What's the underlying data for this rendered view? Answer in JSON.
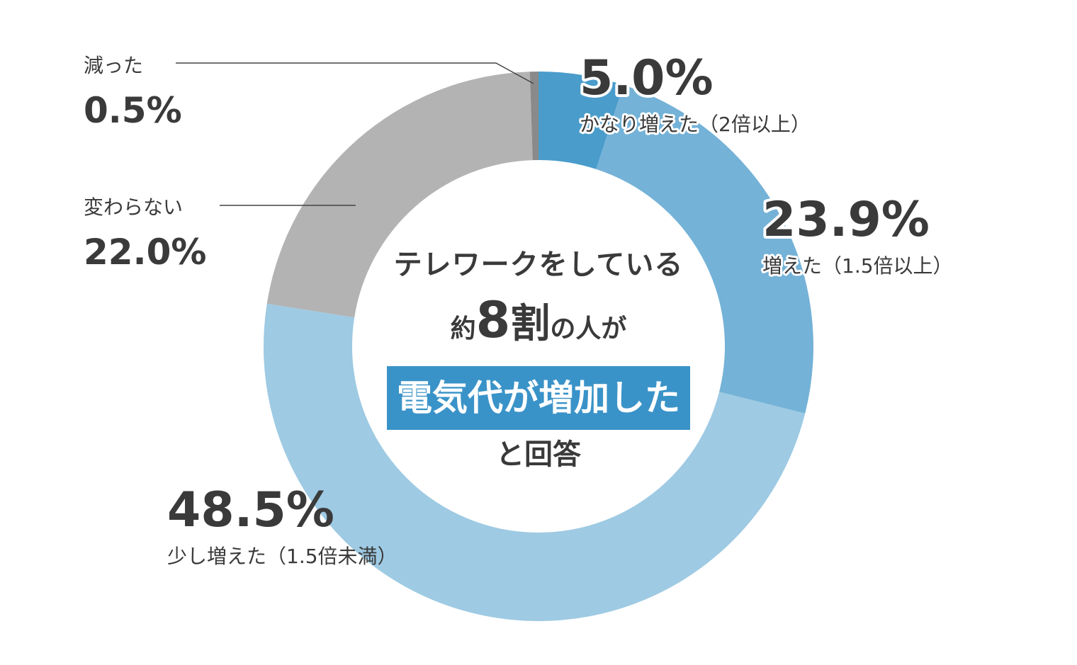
{
  "chart_data": {
    "type": "pie",
    "style": "donut",
    "slices": [
      {
        "label": "かなり増えた（2倍以上）",
        "value": 5.0,
        "display": "5.0%",
        "color": "#4a9ccb"
      },
      {
        "label": "増えた（1.5倍以上）",
        "value": 23.9,
        "display": "23.9%",
        "color": "#74b2d7"
      },
      {
        "label": "少し増えた（1.5倍未満）",
        "value": 48.5,
        "display": "48.5%",
        "color": "#9ecae3"
      },
      {
        "label": "変わらない",
        "value": 22.0,
        "display": "22.0%",
        "color": "#b3b3b3"
      },
      {
        "label": "減った",
        "value": 0.5,
        "display": "0.5%",
        "color": "#8a8a8a"
      }
    ],
    "start_angle_deg": 0,
    "direction": "clockwise"
  },
  "center": {
    "line1": "テレワークをしている",
    "line2_prefix": "約",
    "line2_number": "8",
    "line2_unit": "割",
    "line2_suffix": "の人が",
    "highlight": "電気代が増加した",
    "highlight_color": "#3a93c8",
    "line4": "と回答"
  },
  "colors": {
    "text_dark": "#3a3a3a",
    "leader_line": "#444444"
  }
}
